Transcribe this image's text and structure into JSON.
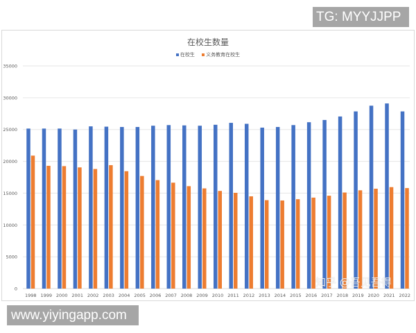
{
  "watermarks": {
    "top_right": "TG: MYYJJPP",
    "bottom_left": "www.yiyingapp.com",
    "overlay": "知乎 @吾见吾得"
  },
  "colors": {
    "series1": "#4472C4",
    "series2": "#ED7D31",
    "grid": "#e6e6e6",
    "text": "#595959"
  },
  "chart_data": {
    "type": "bar",
    "title": "在校生数量",
    "xlabel": "",
    "ylabel": "",
    "ylim": [
      0,
      35000
    ],
    "yticks": [
      0,
      5000,
      10000,
      15000,
      20000,
      25000,
      30000,
      35000
    ],
    "grid": true,
    "legend_position": "top",
    "categories": [
      "1998",
      "1999",
      "2000",
      "2001",
      "2002",
      "2003",
      "2004",
      "2005",
      "2006",
      "2007",
      "2008",
      "2009",
      "2010",
      "2011",
      "2012",
      "2013",
      "2014",
      "2015",
      "2016",
      "2017",
      "2018",
      "2019",
      "2020",
      "2021",
      "2022"
    ],
    "series": [
      {
        "name": "在校生",
        "color": "#4472C4",
        "values": [
          25150,
          25150,
          25150,
          25000,
          25500,
          25450,
          25400,
          25400,
          25600,
          25700,
          25650,
          25600,
          25750,
          26050,
          25900,
          25300,
          25400,
          25700,
          26150,
          26500,
          27050,
          27850,
          28750,
          29100,
          27850
        ]
      },
      {
        "name": "义务教育在校生",
        "color": "#ED7D31",
        "values": [
          20900,
          19300,
          19250,
          19050,
          18800,
          19400,
          18450,
          17700,
          17050,
          16650,
          16100,
          15750,
          15350,
          15050,
          14500,
          13900,
          13850,
          14050,
          14300,
          14600,
          15100,
          15450,
          15700,
          15950,
          15800
        ]
      }
    ]
  }
}
